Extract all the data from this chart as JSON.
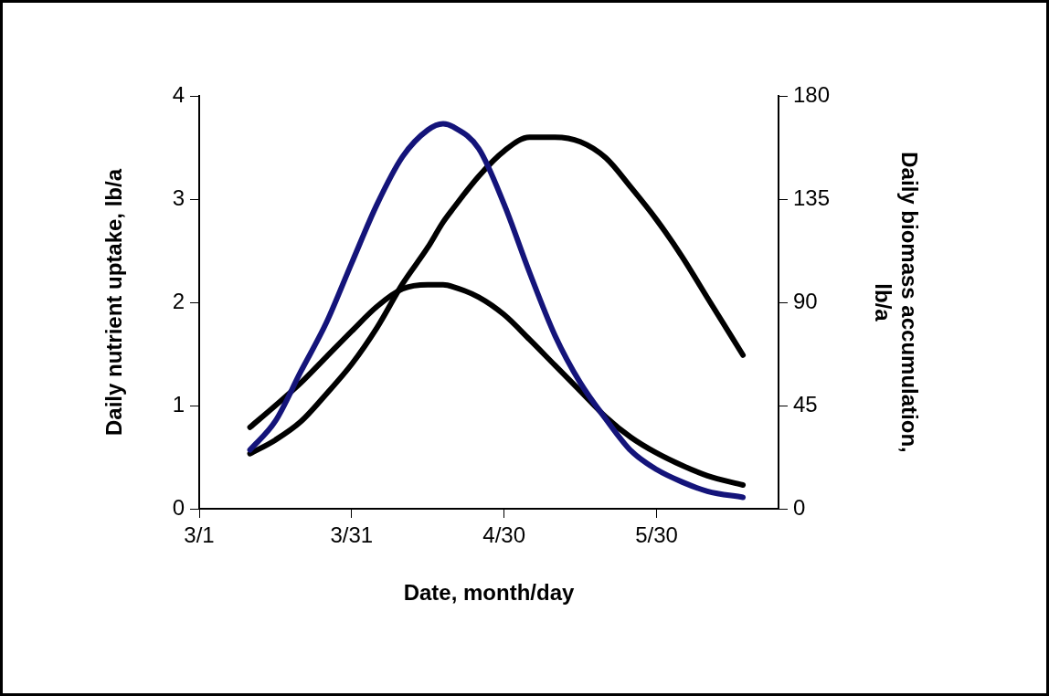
{
  "chart_data": {
    "type": "line",
    "xlabel": "Date, month/day",
    "ylabel": "Daily nutrient uptake, lb/a",
    "y2label": "Daily biomass accumulation, lb/a",
    "x": [
      "--03-11",
      "--03-16",
      "--03-21",
      "--03-26",
      "--03-31",
      "--04-05",
      "--04-10",
      "--04-15",
      "--04-18",
      "--04-20",
      "--04-25",
      "--04-30",
      "--05-05",
      "--05-10",
      "--05-15",
      "--05-20",
      "--05-25",
      "--05-30",
      "--06-04",
      "--06-09",
      "--06-16"
    ],
    "series": [
      {
        "color": "#14147a",
        "values": [
          0.57,
          0.85,
          1.33,
          1.8,
          2.38,
          2.95,
          3.41,
          3.67,
          3.73,
          3.7,
          3.49,
          2.95,
          2.29,
          1.68,
          1.22,
          0.87,
          0.56,
          0.38,
          0.26,
          0.17,
          0.11
        ]
      },
      {
        "color": "#000000",
        "values": [
          0.79,
          1.0,
          1.22,
          1.47,
          1.72,
          1.96,
          2.13,
          2.17,
          2.17,
          2.15,
          2.05,
          1.88,
          1.64,
          1.39,
          1.14,
          0.89,
          0.69,
          0.54,
          0.42,
          0.32,
          0.23
        ]
      },
      {
        "color": "#000000",
        "axis": "y2",
        "values": [
          24,
          30,
          38,
          50,
          63,
          79,
          98,
          114,
          125,
          131,
          145,
          156,
          162,
          162,
          160,
          153,
          140,
          126,
          110,
          92,
          67
        ]
      }
    ],
    "xlim": [
      "--03-01",
      "--06-23"
    ],
    "xticks": [
      {
        "value": "--03-01",
        "label": "3/1"
      },
      {
        "value": "--03-31",
        "label": "3/31"
      },
      {
        "value": "--04-30",
        "label": "4/30"
      },
      {
        "value": "--05-30",
        "label": "5/30"
      }
    ],
    "ylim": [
      0,
      4
    ],
    "yticks": [
      0,
      1,
      2,
      3,
      4
    ],
    "y2lim": [
      0,
      180
    ],
    "y2ticks": [
      0,
      45,
      90,
      135,
      180
    ],
    "grid": false,
    "legend": false,
    "marker": "none",
    "line_style": "solid"
  }
}
